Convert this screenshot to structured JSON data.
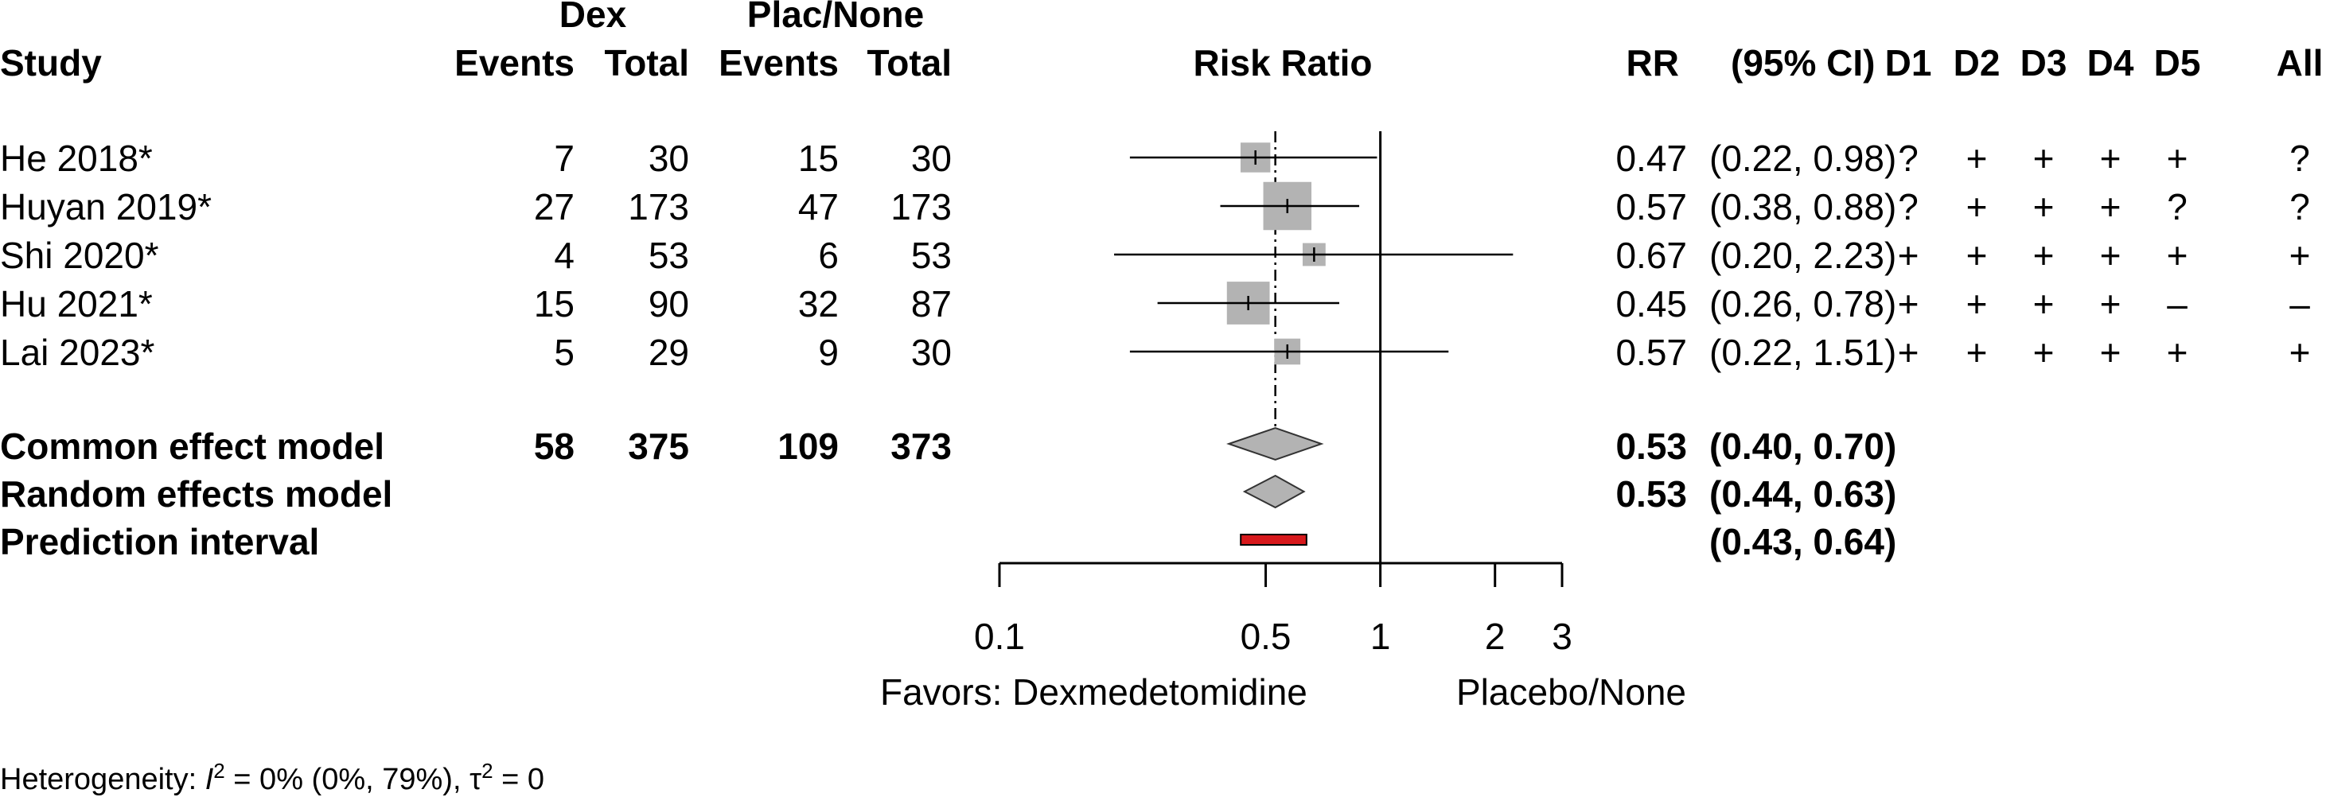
{
  "header": {
    "group1": "Dex",
    "group2": "Plac/None",
    "study": "Study",
    "events1": "Events",
    "total1": "Total",
    "events2": "Events",
    "total2": "Total",
    "plot_title": "Risk Ratio",
    "rr": "RR",
    "ci": "(95% CI)",
    "domains": [
      "D1",
      "D2",
      "D3",
      "D4",
      "D5",
      "All"
    ]
  },
  "studies": [
    {
      "name": "He 2018*",
      "e1": "7",
      "t1": "30",
      "e2": "15",
      "t2": "30",
      "rr_text": "0.47",
      "ci_text": "(0.22, 0.98)",
      "rob": [
        "?",
        "+",
        "+",
        "+",
        "+",
        "?"
      ]
    },
    {
      "name": "Huyan 2019*",
      "e1": "27",
      "t1": "173",
      "e2": "47",
      "t2": "173",
      "rr_text": "0.57",
      "ci_text": "(0.38, 0.88)",
      "rob": [
        "?",
        "+",
        "+",
        "+",
        "?",
        "?"
      ]
    },
    {
      "name": "Shi 2020*",
      "e1": "4",
      "t1": "53",
      "e2": "6",
      "t2": "53",
      "rr_text": "0.67",
      "ci_text": "(0.20, 2.23)",
      "rob": [
        "+",
        "+",
        "+",
        "+",
        "+",
        "+"
      ]
    },
    {
      "name": "Hu 2021*",
      "e1": "15",
      "t1": "90",
      "e2": "32",
      "t2": "87",
      "rr_text": "0.45",
      "ci_text": "(0.26, 0.78)",
      "rob": [
        "+",
        "+",
        "+",
        "+",
        "–",
        "–"
      ]
    },
    {
      "name": "Lai 2023*",
      "e1": "5",
      "t1": "29",
      "e2": "9",
      "t2": "30",
      "rr_text": "0.57",
      "ci_text": "(0.22, 1.51)",
      "rob": [
        "+",
        "+",
        "+",
        "+",
        "+",
        "+"
      ]
    }
  ],
  "pooled": [
    {
      "name": "Common effect model",
      "e1": "58",
      "t1": "375",
      "e2": "109",
      "t2": "373",
      "rr_text": "0.53",
      "ci_text": "(0.40, 0.70)"
    },
    {
      "name": "Random effects model",
      "rr_text": "0.53",
      "ci_text": "(0.44, 0.63)"
    },
    {
      "name": "Prediction interval",
      "ci_text": "(0.43, 0.64)"
    }
  ],
  "axis": {
    "left_label": "Favors: Dexmedetomidine",
    "right_label": "Placebo/None"
  },
  "heterogeneity": {
    "prefix": "Heterogeneity: ",
    "i2_symbol": "I",
    "i2_sup": "2",
    "i2_value": " = 0% (0%, 79%), ",
    "tau_symbol": "τ",
    "tau_sup": "2",
    "tau_value": " = 0"
  },
  "colors": {
    "square": "#b3b3b3",
    "diamond": "#b3b3b3",
    "prediction": "#d7191c"
  },
  "chart_data": {
    "type": "forest",
    "x_scale": "log",
    "xlim": [
      0.1,
      3
    ],
    "ticks": [
      0.1,
      0.5,
      1,
      2,
      3
    ],
    "tick_labels": [
      "0.1",
      "0.5",
      "1",
      "2",
      "3"
    ],
    "null_value": 1,
    "pooled_reference": 0.53,
    "studies": [
      {
        "name": "He 2018*",
        "rr": 0.47,
        "lower": 0.22,
        "upper": 0.98,
        "weight": 0.14
      },
      {
        "name": "Huyan 2019*",
        "rr": 0.57,
        "lower": 0.38,
        "upper": 0.88,
        "weight": 0.38
      },
      {
        "name": "Shi 2020*",
        "rr": 0.67,
        "lower": 0.2,
        "upper": 2.23,
        "weight": 0.05
      },
      {
        "name": "Hu 2021*",
        "rr": 0.45,
        "lower": 0.26,
        "upper": 0.78,
        "weight": 0.31
      },
      {
        "name": "Lai 2023*",
        "rr": 0.57,
        "lower": 0.22,
        "upper": 1.51,
        "weight": 0.09
      }
    ],
    "common_effect": {
      "rr": 0.53,
      "lower": 0.4,
      "upper": 0.7
    },
    "random_effects": {
      "rr": 0.53,
      "lower": 0.44,
      "upper": 0.63
    },
    "prediction_interval": {
      "lower": 0.43,
      "upper": 0.64
    }
  }
}
